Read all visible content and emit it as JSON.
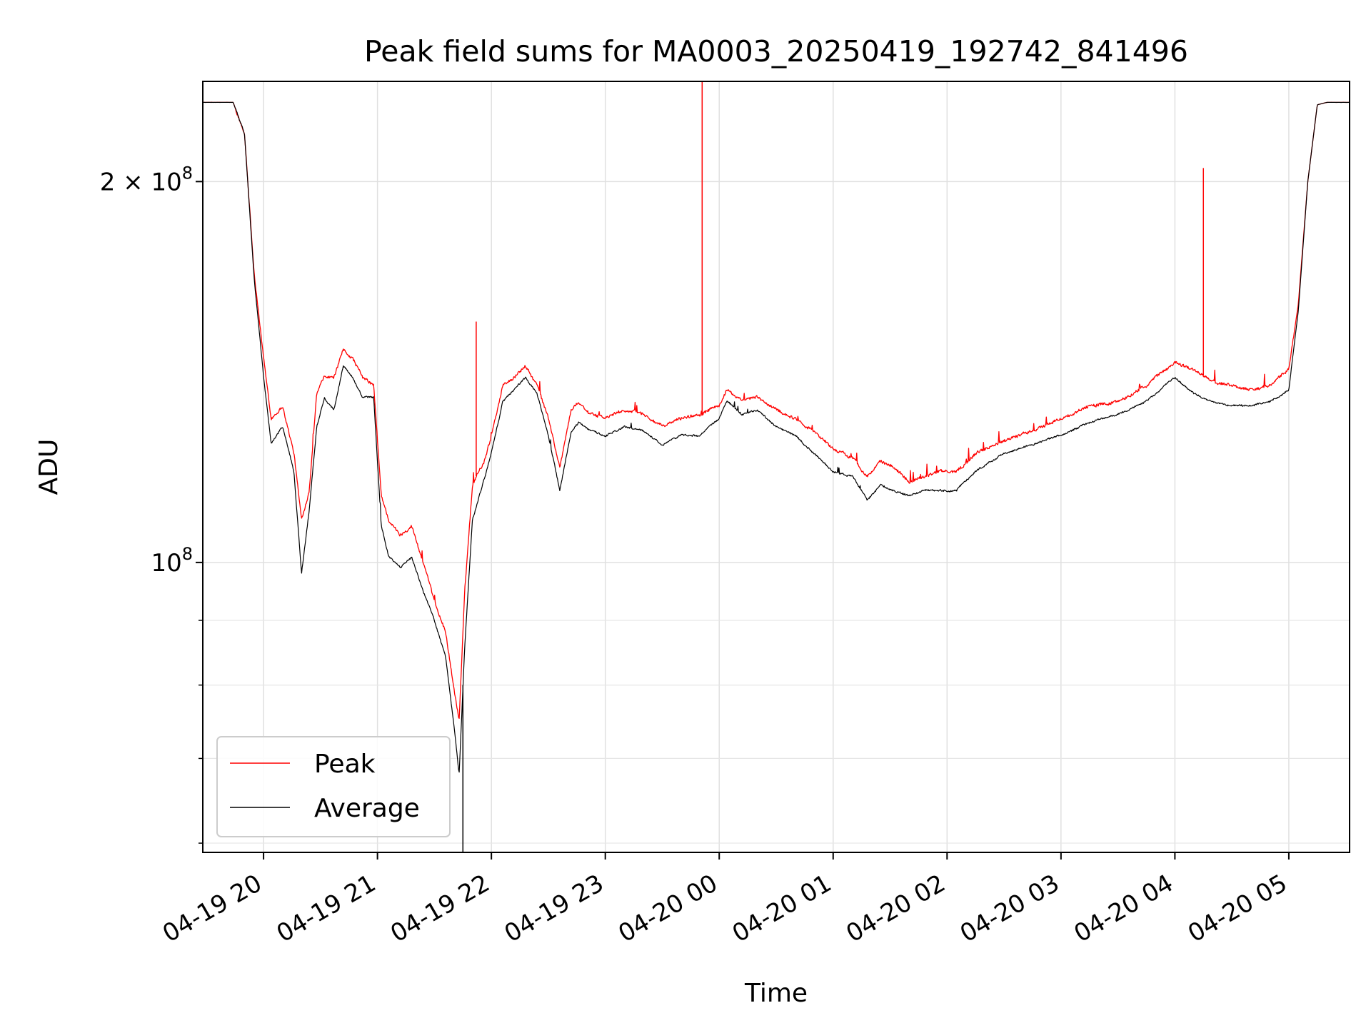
{
  "chart_data": {
    "type": "line",
    "title": "Peak field sums for MA0003_20250419_192742_841496",
    "xlabel": "Time",
    "ylabel": "ADU",
    "yscale": "log",
    "ylim": [
      59000000,
      240000000
    ],
    "xlim": [
      "2025-04-19 19:28",
      "2025-04-20 05:32"
    ],
    "grid": true,
    "legend_position": "lower-left",
    "x_ticks": [
      {
        "t": "2025-04-19 20:00",
        "label": "04-19 20"
      },
      {
        "t": "2025-04-19 21:00",
        "label": "04-19 21"
      },
      {
        "t": "2025-04-19 22:00",
        "label": "04-19 22"
      },
      {
        "t": "2025-04-19 23:00",
        "label": "04-19 23"
      },
      {
        "t": "2025-04-20 00:00",
        "label": "04-20 00"
      },
      {
        "t": "2025-04-20 01:00",
        "label": "04-20 01"
      },
      {
        "t": "2025-04-20 02:00",
        "label": "04-20 02"
      },
      {
        "t": "2025-04-20 03:00",
        "label": "04-20 03"
      },
      {
        "t": "2025-04-20 04:00",
        "label": "04-20 04"
      },
      {
        "t": "2025-04-20 05:00",
        "label": "04-20 05"
      }
    ],
    "y_ticks": [
      {
        "value": 200000000,
        "label_base": "2 × 10",
        "label_exp": "8"
      },
      {
        "value": 100000000,
        "label_base": "10",
        "label_exp": "8"
      }
    ],
    "y_minor_ticks": [
      60000000,
      70000000,
      80000000,
      90000000
    ],
    "series": [
      {
        "name": "Peak",
        "color": "#ff0000",
        "x": [
          "2025-04-19 19:28",
          "2025-04-19 19:44",
          "2025-04-19 19:50",
          "2025-04-19 19:55",
          "2025-04-19 20:00",
          "2025-04-19 20:04",
          "2025-04-19 20:10",
          "2025-04-19 20:16",
          "2025-04-19 20:20",
          "2025-04-19 20:24",
          "2025-04-19 20:28",
          "2025-04-19 20:32",
          "2025-04-19 20:37",
          "2025-04-19 20:42",
          "2025-04-19 20:47",
          "2025-04-19 20:52",
          "2025-04-19 20:58",
          "2025-04-19 21:02",
          "2025-04-19 21:06",
          "2025-04-19 21:12",
          "2025-04-19 21:18",
          "2025-04-19 21:24",
          "2025-04-19 21:30",
          "2025-04-19 21:36",
          "2025-04-19 21:40",
          "2025-04-19 21:43",
          "2025-04-19 21:46",
          "2025-04-19 21:50",
          "2025-04-19 21:53",
          "2025-04-19 21:56",
          "2025-04-19 22:00",
          "2025-04-19 22:06",
          "2025-04-19 22:12",
          "2025-04-19 22:18",
          "2025-04-19 22:24",
          "2025-04-19 22:30",
          "2025-04-19 22:36",
          "2025-04-19 22:42",
          "2025-04-19 22:46",
          "2025-04-19 22:52",
          "2025-04-19 23:00",
          "2025-04-19 23:10",
          "2025-04-19 23:20",
          "2025-04-19 23:30",
          "2025-04-19 23:40",
          "2025-04-19 23:50",
          "2025-04-20 00:00",
          "2025-04-20 00:04",
          "2025-04-20 00:12",
          "2025-04-20 00:20",
          "2025-04-20 00:30",
          "2025-04-20 00:40",
          "2025-04-20 00:50",
          "2025-04-20 01:00",
          "2025-04-20 01:10",
          "2025-04-20 01:18",
          "2025-04-20 01:25",
          "2025-04-20 01:32",
          "2025-04-20 01:40",
          "2025-04-20 01:48",
          "2025-04-20 01:56",
          "2025-04-20 02:05",
          "2025-04-20 02:15",
          "2025-04-20 02:30",
          "2025-04-20 02:45",
          "2025-04-20 03:00",
          "2025-04-20 03:15",
          "2025-04-20 03:30",
          "2025-04-20 03:45",
          "2025-04-20 04:00",
          "2025-04-20 04:10",
          "2025-04-20 04:20",
          "2025-04-20 04:30",
          "2025-04-20 04:40",
          "2025-04-20 04:50",
          "2025-04-20 05:00",
          "2025-04-20 05:05",
          "2025-04-20 05:10",
          "2025-04-20 05:15",
          "2025-04-20 05:20",
          "2025-04-20 05:32"
        ],
        "values": [
          231000000,
          231000000,
          218000000,
          170000000,
          145000000,
          130000000,
          133000000,
          122000000,
          108000000,
          114000000,
          136000000,
          140000000,
          140000000,
          147000000,
          145000000,
          140000000,
          138000000,
          113000000,
          108000000,
          105000000,
          107000000,
          100000000,
          93000000,
          88000000,
          80000000,
          75000000,
          95000000,
          115000000,
          118000000,
          120000000,
          126000000,
          138000000,
          140000000,
          143000000,
          138000000,
          130000000,
          119000000,
          132000000,
          134000000,
          131000000,
          130000000,
          132000000,
          131000000,
          128000000,
          130000000,
          131000000,
          133000000,
          137000000,
          134000000,
          135000000,
          132000000,
          130000000,
          127000000,
          123000000,
          121000000,
          117000000,
          120000000,
          119000000,
          116000000,
          117000000,
          118000000,
          118000000,
          122000000,
          125000000,
          127000000,
          130000000,
          133000000,
          134000000,
          138000000,
          144000000,
          142000000,
          139000000,
          138000000,
          137000000,
          138000000,
          142000000,
          160000000,
          200000000,
          230000000,
          231000000,
          231000000
        ]
      },
      {
        "name": "Average",
        "color": "#000000",
        "x": [
          "2025-04-19 19:28",
          "2025-04-19 19:44",
          "2025-04-19 19:50",
          "2025-04-19 19:55",
          "2025-04-19 20:00",
          "2025-04-19 20:04",
          "2025-04-19 20:10",
          "2025-04-19 20:16",
          "2025-04-19 20:20",
          "2025-04-19 20:24",
          "2025-04-19 20:28",
          "2025-04-19 20:32",
          "2025-04-19 20:37",
          "2025-04-19 20:42",
          "2025-04-19 20:47",
          "2025-04-19 20:52",
          "2025-04-19 20:58",
          "2025-04-19 21:02",
          "2025-04-19 21:06",
          "2025-04-19 21:12",
          "2025-04-19 21:18",
          "2025-04-19 21:24",
          "2025-04-19 21:30",
          "2025-04-19 21:36",
          "2025-04-19 21:40",
          "2025-04-19 21:43",
          "2025-04-19 21:46",
          "2025-04-19 21:50",
          "2025-04-19 21:53",
          "2025-04-19 21:56",
          "2025-04-19 22:00",
          "2025-04-19 22:06",
          "2025-04-19 22:12",
          "2025-04-19 22:18",
          "2025-04-19 22:24",
          "2025-04-19 22:30",
          "2025-04-19 22:36",
          "2025-04-19 22:42",
          "2025-04-19 22:46",
          "2025-04-19 22:52",
          "2025-04-19 23:00",
          "2025-04-19 23:10",
          "2025-04-19 23:20",
          "2025-04-19 23:30",
          "2025-04-19 23:40",
          "2025-04-19 23:50",
          "2025-04-20 00:00",
          "2025-04-20 00:04",
          "2025-04-20 00:12",
          "2025-04-20 00:20",
          "2025-04-20 00:30",
          "2025-04-20 00:40",
          "2025-04-20 00:50",
          "2025-04-20 01:00",
          "2025-04-20 01:10",
          "2025-04-20 01:18",
          "2025-04-20 01:25",
          "2025-04-20 01:32",
          "2025-04-20 01:40",
          "2025-04-20 01:48",
          "2025-04-20 01:56",
          "2025-04-20 02:05",
          "2025-04-20 02:15",
          "2025-04-20 02:30",
          "2025-04-20 02:45",
          "2025-04-20 03:00",
          "2025-04-20 03:15",
          "2025-04-20 03:30",
          "2025-04-20 03:45",
          "2025-04-20 04:00",
          "2025-04-20 04:10",
          "2025-04-20 04:20",
          "2025-04-20 04:30",
          "2025-04-20 04:40",
          "2025-04-20 04:50",
          "2025-04-20 05:00",
          "2025-04-20 05:05",
          "2025-04-20 05:10",
          "2025-04-20 05:15",
          "2025-04-20 05:20",
          "2025-04-20 05:32"
        ],
        "values": [
          231000000,
          231000000,
          218000000,
          168000000,
          140000000,
          124000000,
          128000000,
          118000000,
          98000000,
          110000000,
          128000000,
          135000000,
          132000000,
          143000000,
          140000000,
          135000000,
          135000000,
          107000000,
          101000000,
          99000000,
          101000000,
          95000000,
          90000000,
          84000000,
          75000000,
          68000000,
          86000000,
          108000000,
          112000000,
          116000000,
          122000000,
          134000000,
          137000000,
          140000000,
          136000000,
          126000000,
          114000000,
          127000000,
          129000000,
          127000000,
          126000000,
          128000000,
          127000000,
          124000000,
          126000000,
          126000000,
          130000000,
          134000000,
          131000000,
          132000000,
          128000000,
          126000000,
          122000000,
          118000000,
          117000000,
          112000000,
          115000000,
          114000000,
          113000000,
          114000000,
          114000000,
          114000000,
          118000000,
          122000000,
          124000000,
          126000000,
          129000000,
          131000000,
          134000000,
          140000000,
          136000000,
          134000000,
          133000000,
          133000000,
          134000000,
          137000000,
          158000000,
          200000000,
          230000000,
          231000000,
          231000000
        ]
      }
    ],
    "spikes": [
      {
        "series": "Peak",
        "x": "2025-04-19 21:52",
        "value": 155000000
      },
      {
        "series": "Peak",
        "x": "2025-04-19 23:51",
        "value": 240000000
      },
      {
        "series": "Peak",
        "x": "2025-04-20 04:15",
        "value": 205000000
      },
      {
        "series": "Average",
        "x": "2025-04-19 21:45",
        "value": 59000000
      }
    ]
  }
}
